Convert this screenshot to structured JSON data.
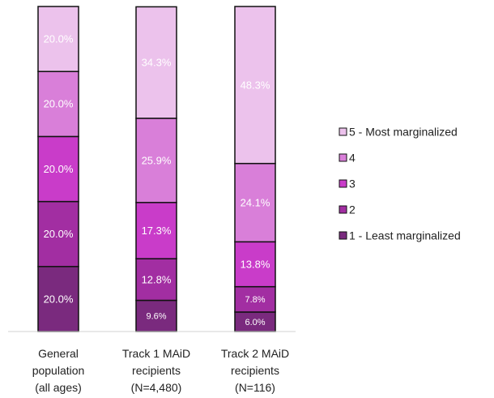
{
  "chart_data": {
    "type": "stacked-bar",
    "categories": [
      "General\npopulation\n(all ages)",
      "Track 1 MAiD\nrecipients\n(N=4,480)",
      "Track 2 MAiD\nrecipients\n(N=116)"
    ],
    "series": [
      {
        "name": "1 - Least marginalized",
        "color": "#7a2a7e",
        "values": [
          20.0,
          9.6,
          6.0
        ],
        "value_labels": [
          "20.0%",
          "9.6%",
          "6.0%"
        ]
      },
      {
        "name": "2",
        "color": "#a22ea2",
        "values": [
          20.0,
          12.8,
          7.8
        ],
        "value_labels": [
          "20.0%",
          "12.8%",
          "7.8%"
        ]
      },
      {
        "name": "3",
        "color": "#c93cc9",
        "values": [
          20.0,
          17.3,
          13.8
        ],
        "value_labels": [
          "20.0%",
          "17.3%",
          "13.8%"
        ]
      },
      {
        "name": "4",
        "color": "#d97fd9",
        "values": [
          20.0,
          25.9,
          24.1
        ],
        "value_labels": [
          "20.0%",
          "25.9%",
          "24.1%"
        ]
      },
      {
        "name": "5 - Most marginalized",
        "color": "#ecc2ec",
        "values": [
          20.0,
          34.3,
          48.3
        ],
        "value_labels": [
          "20.0%",
          "34.3%",
          "48.3%"
        ]
      }
    ],
    "ylim": [
      0,
      100
    ],
    "legend": "right"
  }
}
